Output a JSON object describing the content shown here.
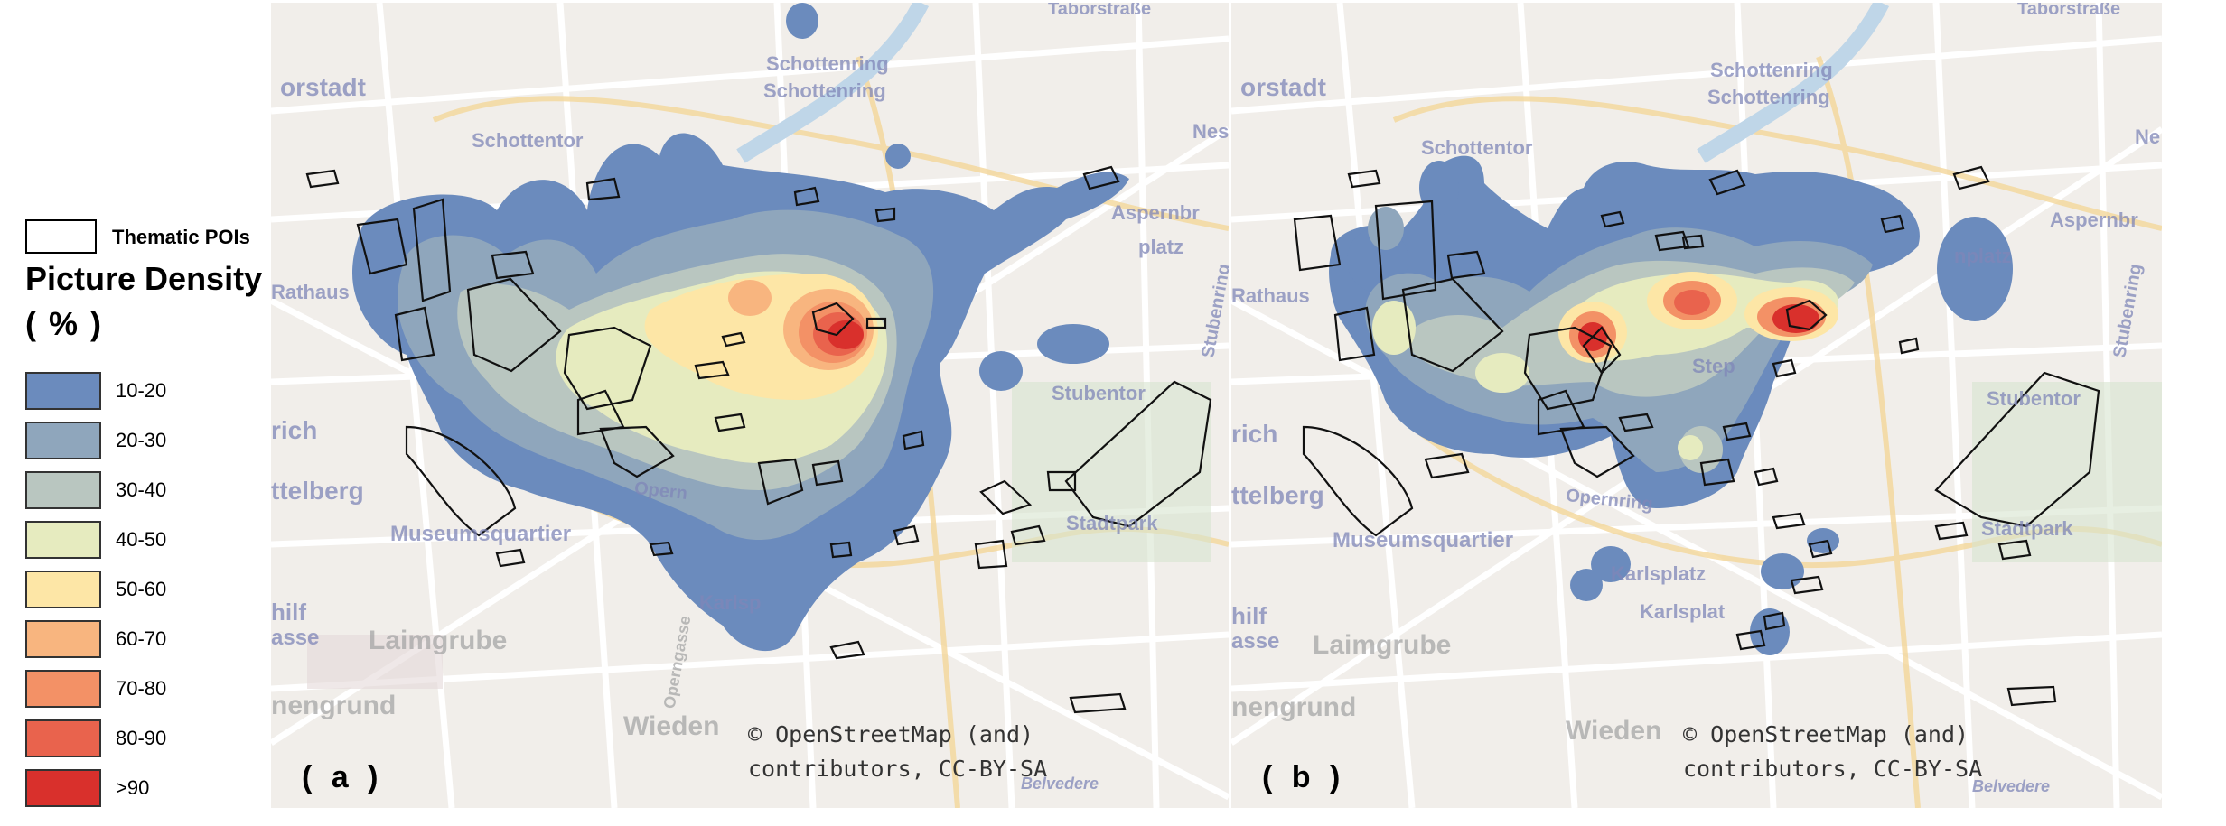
{
  "legend": {
    "poi_label": "Thematic POIs",
    "title": "Picture Density",
    "unit": "( % )",
    "classes": [
      {
        "label": "10-20",
        "color": "#6b8bbd"
      },
      {
        "label": "20-30",
        "color": "#8fa6bc"
      },
      {
        "label": "30-40",
        "color": "#b9c6c0"
      },
      {
        "label": "40-50",
        "color": "#e6ebbf"
      },
      {
        "label": "50-60",
        "color": "#fde6a6"
      },
      {
        "label": "60-70",
        "color": "#f8b57f"
      },
      {
        "label": "70-80",
        "color": "#f39166"
      },
      {
        "label": "80-90",
        "color": "#e9634d"
      },
      {
        "label": ">90",
        "color": "#d9302c"
      }
    ]
  },
  "panels": {
    "a": {
      "tag": "( a )",
      "copyright_line1": "© OpenStreetMap (and)",
      "copyright_line2": "contributors, CC-BY-SA",
      "labels": {
        "schottenring1": "Schottenring",
        "schottenring2": "Schottenring",
        "schottentor": "Schottentor",
        "orstadt": "orstadt",
        "aspernbr": "Aspernbr",
        "platz": "platz",
        "rathaus": "Rathaus",
        "stubentor": "Stubentor",
        "rich": "rich",
        "ttelberg": "ttelberg",
        "museumsquartier": "Museumsquartier",
        "karlsp": "Karlsp",
        "laimgrube": "Laimgrube",
        "nengrund": "nengrund",
        "wieden": "Wieden",
        "stadtpark": "Stadtpark",
        "taborstrasse": "Taborstraße",
        "nes": "Nes",
        "hilf": "hilf",
        "asse": "asse",
        "stubenring": "Stubenring",
        "opern": "Opern",
        "opergasse": "Operngasse",
        "belvedere": "Belvedere"
      }
    },
    "b": {
      "tag": "( b )",
      "copyright_line1": "© OpenStreetMap (and)",
      "copyright_line2": "contributors, CC-BY-SA",
      "labels": {
        "schottenring1": "Schottenring",
        "schottenring2": "Schottenring",
        "schottentor": "Schottentor",
        "orstadt": "orstadt",
        "aspernbr": "Aspernbr",
        "platz": "nplatz",
        "rathaus": "Rathaus",
        "stubentor": "Stubentor",
        "rich": "rich",
        "ttelberg": "ttelberg",
        "museumsquartier": "Museumsquartier",
        "karlsplatz": "Karlsplatz",
        "karlsp": "Karlsplat",
        "laimgrube": "Laimgrube",
        "nengrund": "nengrund",
        "wieden": "Wieden",
        "stadtpark": "Stadtpark",
        "taborstrasse": "Taborstraße",
        "ne": "Ne",
        "hilf": "hilf",
        "asse": "asse",
        "stubenring": "Stubenring",
        "opernring": "Opernring",
        "steph": "Step",
        "belvedere": "Belvedere"
      }
    }
  }
}
